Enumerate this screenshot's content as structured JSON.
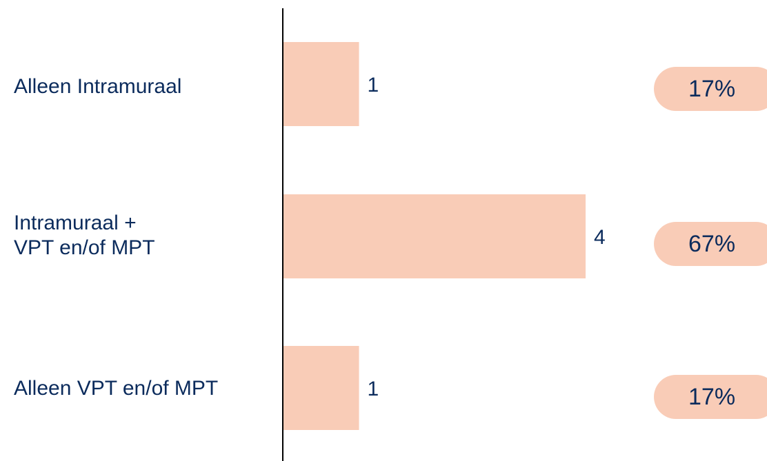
{
  "chart_data": {
    "type": "bar",
    "orientation": "horizontal",
    "categories": [
      "Alleen Intramuraal",
      "Intramuraal +\nVPT en/of MPT",
      "Alleen VPT en/of MPT"
    ],
    "values": [
      1,
      4,
      1
    ],
    "percentages": [
      "17%",
      "67%",
      "17%"
    ],
    "title": "",
    "xlabel": "",
    "ylabel": "",
    "xlim": [
      0,
      4
    ],
    "grid": false,
    "legend": "none",
    "colors": {
      "bar": "#f9ccb7",
      "badge": "#f9ccb7",
      "text": "#0b2b5c",
      "axis": "#000000"
    }
  }
}
